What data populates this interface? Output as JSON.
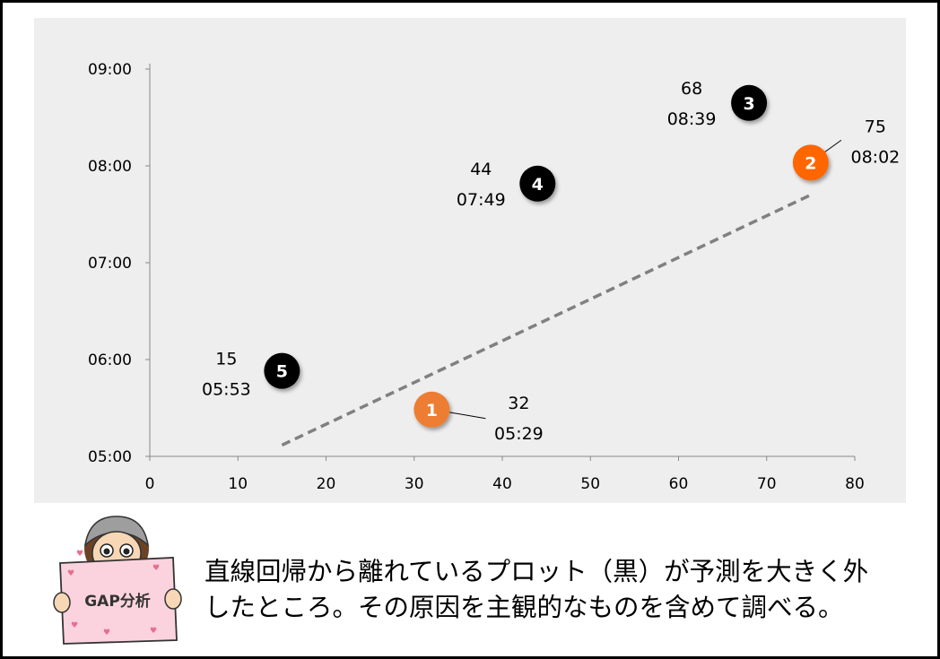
{
  "chart_data": {
    "type": "scatter",
    "title": "",
    "xlabel": "",
    "ylabel": "",
    "xlim": [
      0,
      80
    ],
    "ylim": [
      "05:00",
      "09:00"
    ],
    "x_ticks": [
      "0",
      "10",
      "20",
      "30",
      "40",
      "50",
      "60",
      "70",
      "80"
    ],
    "y_ticks": [
      "05:00",
      "06:00",
      "07:00",
      "08:00",
      "09:00"
    ],
    "grid": false,
    "points": [
      {
        "id": "1",
        "x": 32,
        "y": "05:29",
        "label_x": "32",
        "label_y": "05:29",
        "color": "#ed7d31",
        "callout": true
      },
      {
        "id": "2",
        "x": 75,
        "y": "08:02",
        "label_x": "75",
        "label_y": "08:02",
        "color": "#ff6600",
        "callout": true
      },
      {
        "id": "3",
        "x": 68,
        "y": "08:39",
        "label_x": "68",
        "label_y": "08:39",
        "color": "#000000",
        "callout": false
      },
      {
        "id": "4",
        "x": 44,
        "y": "07:49",
        "label_x": "44",
        "label_y": "07:49",
        "color": "#000000",
        "callout": false
      },
      {
        "id": "5",
        "x": 15,
        "y": "05:53",
        "label_x": "15",
        "label_y": "05:53",
        "color": "#000000",
        "callout": false
      }
    ],
    "trendline": {
      "style": "dashed",
      "color": "#808080",
      "from": {
        "x": 15,
        "y": "05:07"
      },
      "to": {
        "x": 75,
        "y": "07:42"
      }
    }
  },
  "caption": {
    "line1": "直線回帰から離れているプロット（黒）が予測を大きく外",
    "line2": "したところ。その原因を主観的なものを含めて調べる。"
  },
  "mascot": {
    "sign_text": "GAP分析",
    "icon": "girl-holding-sign-icon"
  }
}
